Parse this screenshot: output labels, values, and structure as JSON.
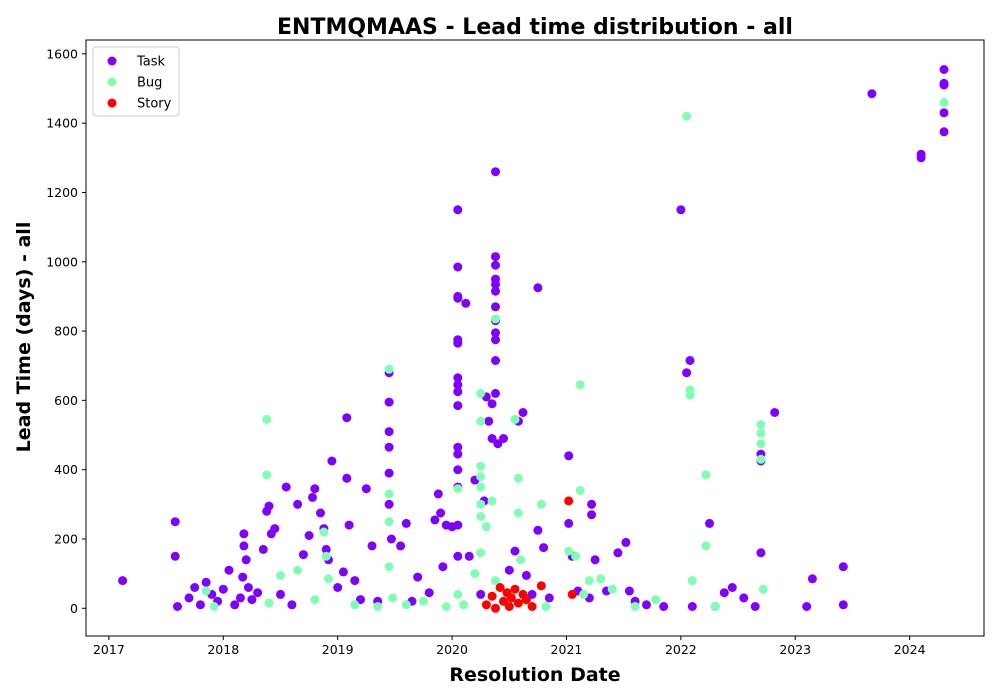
{
  "chart_data": {
    "type": "scatter",
    "title": "ENTMQMAAS - Lead time distribution - all",
    "xlabel": "Resolution Date",
    "ylabel": "Lead Time (days) - all",
    "xlim": [
      2016.8,
      2024.65
    ],
    "ylim": [
      -80,
      1640
    ],
    "x_ticks": [
      {
        "value": 2017,
        "label": "2017"
      },
      {
        "value": 2018,
        "label": "2018"
      },
      {
        "value": 2019,
        "label": "2019"
      },
      {
        "value": 2020,
        "label": "2020"
      },
      {
        "value": 2021,
        "label": "2021"
      },
      {
        "value": 2022,
        "label": "2022"
      },
      {
        "value": 2023,
        "label": "2023"
      },
      {
        "value": 2024,
        "label": "2024"
      }
    ],
    "y_ticks": [
      {
        "value": 0,
        "label": "0"
      },
      {
        "value": 200,
        "label": "200"
      },
      {
        "value": 400,
        "label": "400"
      },
      {
        "value": 600,
        "label": "600"
      },
      {
        "value": 800,
        "label": "800"
      },
      {
        "value": 1000,
        "label": "1000"
      },
      {
        "value": 1200,
        "label": "1200"
      },
      {
        "value": 1400,
        "label": "1400"
      },
      {
        "value": 1600,
        "label": "1600"
      }
    ],
    "grid": false,
    "legend_position": "top-left",
    "series": [
      {
        "name": "Task",
        "color": "#8000ff",
        "points": [
          [
            2017.12,
            80
          ],
          [
            2017.58,
            250
          ],
          [
            2017.58,
            150
          ],
          [
            2017.6,
            5
          ],
          [
            2017.7,
            30
          ],
          [
            2017.75,
            60
          ],
          [
            2017.8,
            10
          ],
          [
            2017.85,
            75
          ],
          [
            2017.9,
            40
          ],
          [
            2017.95,
            20
          ],
          [
            2018.0,
            55
          ],
          [
            2018.05,
            110
          ],
          [
            2018.1,
            10
          ],
          [
            2018.15,
            30
          ],
          [
            2018.17,
            90
          ],
          [
            2018.18,
            215
          ],
          [
            2018.18,
            180
          ],
          [
            2018.2,
            140
          ],
          [
            2018.22,
            60
          ],
          [
            2018.25,
            25
          ],
          [
            2018.3,
            45
          ],
          [
            2018.35,
            170
          ],
          [
            2018.38,
            280
          ],
          [
            2018.4,
            295
          ],
          [
            2018.42,
            215
          ],
          [
            2018.45,
            230
          ],
          [
            2018.5,
            40
          ],
          [
            2018.55,
            350
          ],
          [
            2018.6,
            10
          ],
          [
            2018.65,
            300
          ],
          [
            2018.7,
            155
          ],
          [
            2018.75,
            210
          ],
          [
            2018.78,
            320
          ],
          [
            2018.8,
            345
          ],
          [
            2018.85,
            275
          ],
          [
            2018.88,
            230
          ],
          [
            2018.9,
            170
          ],
          [
            2018.92,
            140
          ],
          [
            2018.95,
            425
          ],
          [
            2019.0,
            60
          ],
          [
            2019.05,
            105
          ],
          [
            2019.08,
            550
          ],
          [
            2019.08,
            375
          ],
          [
            2019.1,
            240
          ],
          [
            2019.15,
            80
          ],
          [
            2019.2,
            25
          ],
          [
            2019.25,
            345
          ],
          [
            2019.3,
            180
          ],
          [
            2019.35,
            20
          ],
          [
            2019.45,
            680
          ],
          [
            2019.45,
            595
          ],
          [
            2019.45,
            510
          ],
          [
            2019.45,
            465
          ],
          [
            2019.45,
            390
          ],
          [
            2019.45,
            300
          ],
          [
            2019.47,
            200
          ],
          [
            2019.55,
            180
          ],
          [
            2019.6,
            245
          ],
          [
            2019.65,
            20
          ],
          [
            2019.7,
            90
          ],
          [
            2019.8,
            45
          ],
          [
            2019.85,
            255
          ],
          [
            2019.88,
            330
          ],
          [
            2019.9,
            275
          ],
          [
            2019.92,
            120
          ],
          [
            2019.95,
            240
          ],
          [
            2020.0,
            235
          ],
          [
            2020.05,
            1150
          ],
          [
            2020.05,
            985
          ],
          [
            2020.05,
            900
          ],
          [
            2020.05,
            895
          ],
          [
            2020.05,
            775
          ],
          [
            2020.05,
            765
          ],
          [
            2020.05,
            665
          ],
          [
            2020.05,
            645
          ],
          [
            2020.05,
            625
          ],
          [
            2020.05,
            585
          ],
          [
            2020.05,
            465
          ],
          [
            2020.05,
            445
          ],
          [
            2020.05,
            400
          ],
          [
            2020.05,
            350
          ],
          [
            2020.05,
            240
          ],
          [
            2020.05,
            150
          ],
          [
            2020.12,
            880
          ],
          [
            2020.15,
            150
          ],
          [
            2020.2,
            370
          ],
          [
            2020.25,
            40
          ],
          [
            2020.28,
            310
          ],
          [
            2020.3,
            610
          ],
          [
            2020.32,
            540
          ],
          [
            2020.35,
            590
          ],
          [
            2020.35,
            490
          ],
          [
            2020.38,
            1260
          ],
          [
            2020.38,
            1015
          ],
          [
            2020.38,
            990
          ],
          [
            2020.38,
            950
          ],
          [
            2020.38,
            935
          ],
          [
            2020.38,
            915
          ],
          [
            2020.38,
            870
          ],
          [
            2020.38,
            830
          ],
          [
            2020.38,
            795
          ],
          [
            2020.38,
            775
          ],
          [
            2020.38,
            715
          ],
          [
            2020.38,
            620
          ],
          [
            2020.4,
            475
          ],
          [
            2020.45,
            490
          ],
          [
            2020.5,
            110
          ],
          [
            2020.55,
            165
          ],
          [
            2020.58,
            540
          ],
          [
            2020.62,
            565
          ],
          [
            2020.65,
            95
          ],
          [
            2020.7,
            40
          ],
          [
            2020.75,
            225
          ],
          [
            2020.75,
            925
          ],
          [
            2020.8,
            175
          ],
          [
            2020.85,
            30
          ],
          [
            2021.02,
            440
          ],
          [
            2021.02,
            245
          ],
          [
            2021.05,
            150
          ],
          [
            2021.1,
            50
          ],
          [
            2021.2,
            30
          ],
          [
            2021.22,
            300
          ],
          [
            2021.22,
            270
          ],
          [
            2021.25,
            140
          ],
          [
            2021.35,
            50
          ],
          [
            2021.45,
            160
          ],
          [
            2021.52,
            190
          ],
          [
            2021.55,
            50
          ],
          [
            2021.6,
            20
          ],
          [
            2021.7,
            10
          ],
          [
            2021.85,
            5
          ],
          [
            2022.0,
            1150
          ],
          [
            2022.05,
            680
          ],
          [
            2022.08,
            715
          ],
          [
            2022.1,
            5
          ],
          [
            2022.25,
            245
          ],
          [
            2022.3,
            5
          ],
          [
            2022.38,
            45
          ],
          [
            2022.45,
            60
          ],
          [
            2022.55,
            30
          ],
          [
            2022.65,
            5
          ],
          [
            2022.7,
            445
          ],
          [
            2022.7,
            425
          ],
          [
            2022.7,
            160
          ],
          [
            2022.82,
            565
          ],
          [
            2023.1,
            5
          ],
          [
            2023.15,
            85
          ],
          [
            2023.42,
            120
          ],
          [
            2023.42,
            10
          ],
          [
            2023.67,
            1485
          ],
          [
            2024.1,
            1310
          ],
          [
            2024.1,
            1300
          ],
          [
            2024.3,
            1555
          ],
          [
            2024.3,
            1515
          ],
          [
            2024.3,
            1510
          ],
          [
            2024.3,
            1430
          ],
          [
            2024.3,
            1375
          ]
        ]
      },
      {
        "name": "Bug",
        "color": "#80ffb4",
        "points": [
          [
            2017.85,
            50
          ],
          [
            2017.92,
            5
          ],
          [
            2018.38,
            545
          ],
          [
            2018.38,
            385
          ],
          [
            2018.4,
            15
          ],
          [
            2018.5,
            95
          ],
          [
            2018.65,
            110
          ],
          [
            2018.8,
            25
          ],
          [
            2018.88,
            220
          ],
          [
            2018.9,
            150
          ],
          [
            2018.92,
            85
          ],
          [
            2019.15,
            10
          ],
          [
            2019.35,
            5
          ],
          [
            2019.45,
            690
          ],
          [
            2019.45,
            330
          ],
          [
            2019.45,
            250
          ],
          [
            2019.45,
            120
          ],
          [
            2019.48,
            30
          ],
          [
            2019.6,
            10
          ],
          [
            2019.75,
            20
          ],
          [
            2019.95,
            5
          ],
          [
            2020.05,
            345
          ],
          [
            2020.05,
            40
          ],
          [
            2020.1,
            10
          ],
          [
            2020.2,
            100
          ],
          [
            2020.25,
            620
          ],
          [
            2020.25,
            540
          ],
          [
            2020.25,
            410
          ],
          [
            2020.25,
            380
          ],
          [
            2020.25,
            350
          ],
          [
            2020.25,
            300
          ],
          [
            2020.25,
            265
          ],
          [
            2020.25,
            160
          ],
          [
            2020.3,
            235
          ],
          [
            2020.35,
            310
          ],
          [
            2020.38,
            835
          ],
          [
            2020.38,
            80
          ],
          [
            2020.55,
            545
          ],
          [
            2020.58,
            375
          ],
          [
            2020.58,
            275
          ],
          [
            2020.6,
            140
          ],
          [
            2020.65,
            20
          ],
          [
            2020.78,
            300
          ],
          [
            2020.82,
            5
          ],
          [
            2021.02,
            165
          ],
          [
            2021.08,
            150
          ],
          [
            2021.12,
            645
          ],
          [
            2021.12,
            340
          ],
          [
            2021.15,
            40
          ],
          [
            2021.2,
            80
          ],
          [
            2021.3,
            85
          ],
          [
            2021.4,
            55
          ],
          [
            2021.6,
            5
          ],
          [
            2021.78,
            25
          ],
          [
            2022.05,
            1420
          ],
          [
            2022.08,
            630
          ],
          [
            2022.08,
            615
          ],
          [
            2022.1,
            80
          ],
          [
            2022.22,
            385
          ],
          [
            2022.22,
            180
          ],
          [
            2022.3,
            5
          ],
          [
            2022.7,
            530
          ],
          [
            2022.7,
            505
          ],
          [
            2022.7,
            475
          ],
          [
            2022.7,
            430
          ],
          [
            2022.72,
            55
          ],
          [
            2024.3,
            1460
          ]
        ]
      },
      {
        "name": "Story",
        "color": "#ff0000",
        "points": [
          [
            2020.3,
            10
          ],
          [
            2020.35,
            35
          ],
          [
            2020.38,
            0
          ],
          [
            2020.42,
            60
          ],
          [
            2020.45,
            20
          ],
          [
            2020.48,
            45
          ],
          [
            2020.5,
            5
          ],
          [
            2020.52,
            30
          ],
          [
            2020.55,
            55
          ],
          [
            2020.58,
            15
          ],
          [
            2020.62,
            40
          ],
          [
            2020.65,
            25
          ],
          [
            2020.7,
            5
          ],
          [
            2020.78,
            65
          ],
          [
            2021.02,
            310
          ],
          [
            2021.05,
            40
          ]
        ]
      }
    ]
  }
}
